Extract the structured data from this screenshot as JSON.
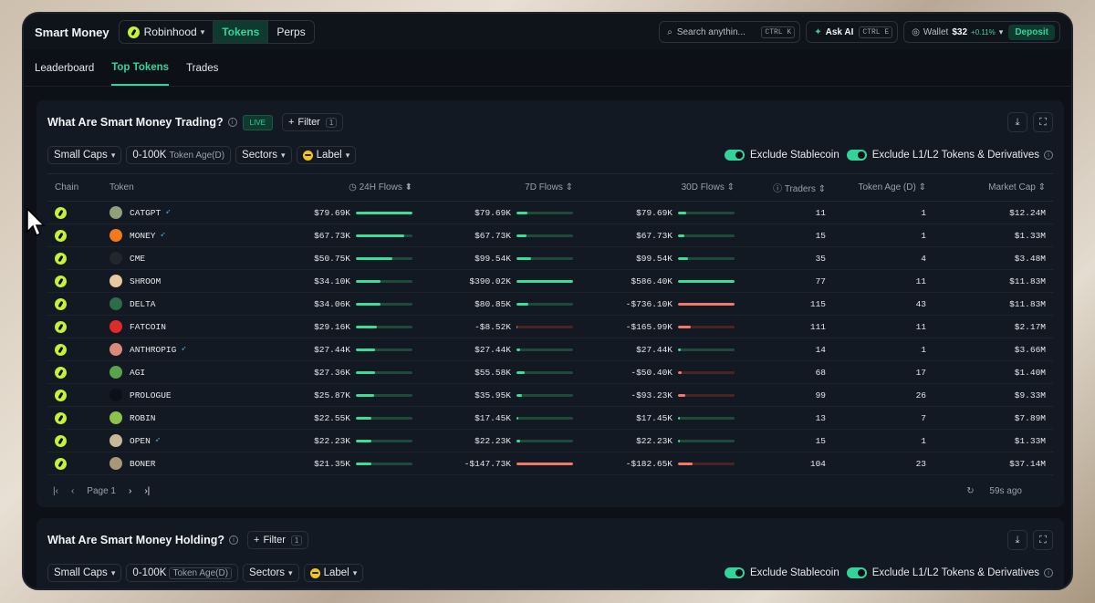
{
  "topbar": {
    "brand": "Smart Money",
    "chain": "Robinhood",
    "tabs": [
      "Tokens",
      "Perps"
    ],
    "search_placeholder": "Search anythin...",
    "search_kbd": "CTRL K",
    "ask_label": "Ask AI",
    "ask_kbd": "CTRL E",
    "wallet_label": "Wallet",
    "wallet_amount": "$32",
    "wallet_change": "+0.11%",
    "deposit": "Deposit"
  },
  "nav": [
    "Leaderboard",
    "Top Tokens",
    "Trades"
  ],
  "trading": {
    "title": "What Are Smart Money Trading?",
    "live": "LIVE",
    "filter": "Filter",
    "filter_count": "1",
    "chips": {
      "small_caps": "Small Caps",
      "age_range": "0-100K",
      "age_label": "Token Age(D)",
      "sectors": "Sectors",
      "label": "Label"
    },
    "toggle1": "Exclude Stablecoin",
    "toggle2": "Exclude L1/L2 Tokens & Derivatives",
    "columns": [
      "Chain",
      "Token",
      "24H Flows",
      "7D Flows",
      "30D Flows",
      "Traders",
      "Token Age (D)",
      "Market Cap"
    ],
    "rows": [
      {
        "token": "CATGPT",
        "bird": true,
        "icon": "#8fa07a",
        "f24": "$79.69K",
        "b24": 1.0,
        "f7": "$79.69K",
        "b7": 0.2,
        "n7": false,
        "f30": "$79.69K",
        "b30": 0.14,
        "n30": false,
        "traders": "11",
        "age": "1",
        "mcap": "$12.24M"
      },
      {
        "token": "MONEY",
        "bird": true,
        "icon": "#f07b1d",
        "f24": "$67.73K",
        "b24": 0.85,
        "f7": "$67.73K",
        "b7": 0.17,
        "n7": false,
        "f30": "$67.73K",
        "b30": 0.12,
        "n30": false,
        "traders": "15",
        "age": "1",
        "mcap": "$1.33M"
      },
      {
        "token": "CME",
        "bird": false,
        "icon": "#22262d",
        "f24": "$50.75K",
        "b24": 0.64,
        "f7": "$99.54K",
        "b7": 0.26,
        "n7": false,
        "f30": "$99.54K",
        "b30": 0.17,
        "n30": false,
        "traders": "35",
        "age": "4",
        "mcap": "$3.48M"
      },
      {
        "token": "SHROOM",
        "bird": false,
        "icon": "#e8c9a0",
        "f24": "$34.10K",
        "b24": 0.43,
        "f7": "$390.02K",
        "b7": 1.0,
        "n7": false,
        "f30": "$586.40K",
        "b30": 1.0,
        "n30": false,
        "traders": "77",
        "age": "11",
        "mcap": "$11.83M"
      },
      {
        "token": "DELTA",
        "bird": false,
        "icon": "#2e6b4a",
        "f24": "$34.06K",
        "b24": 0.43,
        "f7": "$80.85K",
        "b7": 0.21,
        "n7": false,
        "f30": "-$736.10K",
        "b30": 1.0,
        "n30": true,
        "traders": "115",
        "age": "43",
        "mcap": "$11.83M"
      },
      {
        "token": "FATCOIN",
        "bird": false,
        "icon": "#e02a2a",
        "f24": "$29.16K",
        "b24": 0.37,
        "f7": "-$8.52K",
        "b7": 0.02,
        "n7": true,
        "f30": "-$165.99K",
        "b30": 0.23,
        "n30": true,
        "traders": "111",
        "age": "11",
        "mcap": "$2.17M"
      },
      {
        "token": "ANTHROPIG",
        "bird": true,
        "icon": "#d98a7a",
        "f24": "$27.44K",
        "b24": 0.34,
        "f7": "$27.44K",
        "b7": 0.07,
        "n7": false,
        "f30": "$27.44K",
        "b30": 0.05,
        "n30": false,
        "traders": "14",
        "age": "1",
        "mcap": "$3.66M"
      },
      {
        "token": "AGI",
        "bird": false,
        "icon": "#5aa34a",
        "f24": "$27.36K",
        "b24": 0.34,
        "f7": "$55.58K",
        "b7": 0.14,
        "n7": false,
        "f30": "-$50.40K",
        "b30": 0.07,
        "n30": true,
        "traders": "68",
        "age": "17",
        "mcap": "$1.40M"
      },
      {
        "token": "PROLOGUE",
        "bird": false,
        "icon": "#0d1117",
        "f24": "$25.87K",
        "b24": 0.32,
        "f7": "$35.95K",
        "b7": 0.09,
        "n7": false,
        "f30": "-$93.23K",
        "b30": 0.13,
        "n30": true,
        "traders": "99",
        "age": "26",
        "mcap": "$9.33M"
      },
      {
        "token": "ROBIN",
        "bird": false,
        "icon": "#8bc34a",
        "f24": "$22.55K",
        "b24": 0.28,
        "f7": "$17.45K",
        "b7": 0.04,
        "n7": false,
        "f30": "$17.45K",
        "b30": 0.03,
        "n30": false,
        "traders": "13",
        "age": "7",
        "mcap": "$7.89M"
      },
      {
        "token": "OPEN",
        "bird": true,
        "icon": "#c8b89a",
        "f24": "$22.23K",
        "b24": 0.28,
        "f7": "$22.23K",
        "b7": 0.06,
        "n7": false,
        "f30": "$22.23K",
        "b30": 0.04,
        "n30": false,
        "traders": "15",
        "age": "1",
        "mcap": "$1.33M"
      },
      {
        "token": "BONER",
        "bird": false,
        "icon": "#a89878",
        "f24": "$21.35K",
        "b24": 0.27,
        "f7": "-$147.73K",
        "b7": 1.0,
        "n7": true,
        "f30": "-$182.65K",
        "b30": 0.25,
        "n30": true,
        "traders": "104",
        "age": "23",
        "mcap": "$37.14M"
      }
    ],
    "page_label": "Page 1",
    "updated": "59s ago"
  },
  "holding": {
    "title": "What Are Smart Money Holding?",
    "filter": "Filter",
    "filter_count": "1",
    "chips": {
      "small_caps": "Small Caps",
      "age_range": "0-100K",
      "age_label": "Token Age(D)",
      "sectors": "Sectors",
      "label": "Label"
    },
    "toggle1": "Exclude Stablecoin",
    "toggle2": "Exclude L1/L2 Tokens & Derivatives"
  }
}
